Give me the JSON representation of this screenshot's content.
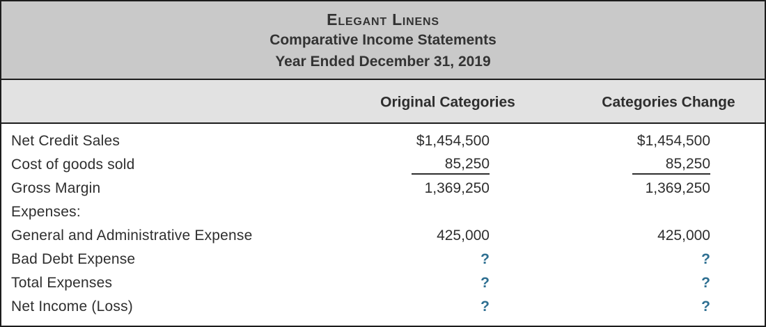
{
  "header": {
    "company": "Elegant Linens",
    "statement": "Comparative Income Statements",
    "period": "Year Ended December 31, 2019"
  },
  "columns": [
    "Original Categories",
    "Categories Change"
  ],
  "rows": [
    {
      "label": "Net Credit Sales",
      "original": "$1,454,500",
      "change": "$1,454,500"
    },
    {
      "label": "Cost of goods sold",
      "original": "85,250",
      "change": "85,250"
    },
    {
      "label": "Gross Margin",
      "original": "1,369,250",
      "change": "1,369,250"
    },
    {
      "label": "Expenses:",
      "original": "",
      "change": ""
    },
    {
      "label": "General and Administrative Expense",
      "original": "425,000",
      "change": "425,000"
    },
    {
      "label": "Bad Debt Expense",
      "original": "?",
      "change": "?"
    },
    {
      "label": "Total Expenses",
      "original": "?",
      "change": "?"
    },
    {
      "label": "Net Income (Loss)",
      "original": "?",
      "change": "?"
    }
  ],
  "colors": {
    "title_band_bg": "#c9c9c9",
    "column_header_bg": "#e2e2e2",
    "border": "#1c1c1c",
    "text": "#2e2e2e",
    "unknown_value_accent": "#2e6f91"
  }
}
